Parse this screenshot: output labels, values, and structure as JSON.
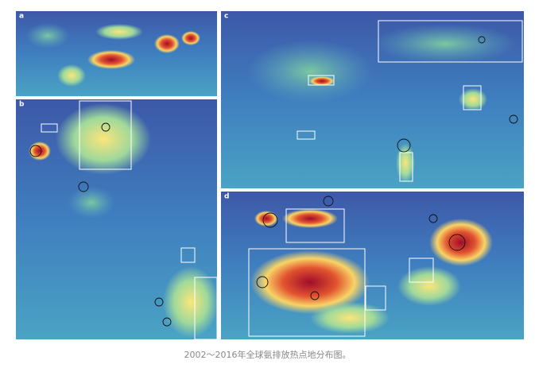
{
  "panels": {
    "a": "a",
    "b": "b",
    "c": "c",
    "d": "d"
  },
  "caption": "2002～2016年全球氨排放热点地分布图。"
}
